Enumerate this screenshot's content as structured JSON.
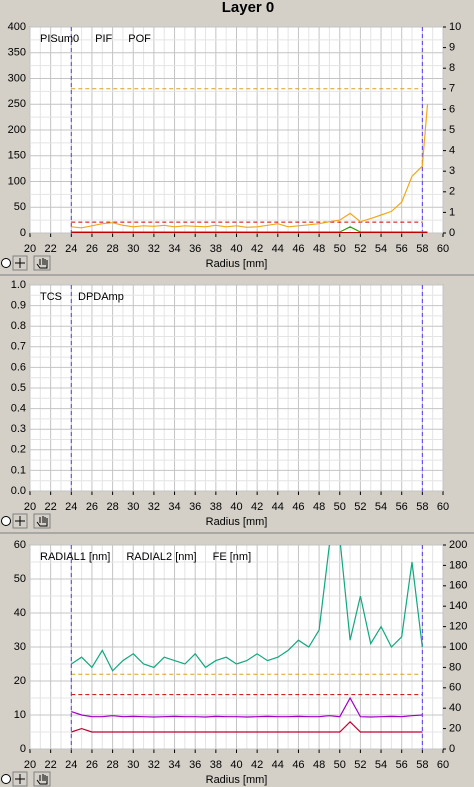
{
  "title": "Layer 0",
  "chart_data": [
    {
      "type": "line",
      "xlabel": "Radius [mm]",
      "xlim": [
        20,
        60
      ],
      "xticks": [
        20,
        22,
        24,
        26,
        28,
        30,
        32,
        34,
        36,
        38,
        40,
        42,
        44,
        46,
        48,
        50,
        52,
        54,
        56,
        58,
        60
      ],
      "ylim": [
        0,
        400
      ],
      "yticks": [
        0,
        50,
        100,
        150,
        200,
        250,
        300,
        350,
        400
      ],
      "y2lim": [
        0,
        10
      ],
      "y2ticks": [
        0,
        1,
        2,
        3,
        4,
        5,
        6,
        7,
        8,
        9,
        10
      ],
      "grid": true,
      "vlines": {
        "values": [
          24,
          58
        ],
        "color": "#5a3cff"
      },
      "hlines": [
        {
          "value": 280,
          "color": "#d8a020"
        },
        {
          "value": 21,
          "color": "#d00000"
        }
      ],
      "x": [
        24,
        25,
        26,
        27,
        28,
        29,
        30,
        31,
        32,
        33,
        34,
        35,
        36,
        37,
        38,
        39,
        40,
        41,
        42,
        43,
        44,
        45,
        46,
        47,
        48,
        49,
        50,
        51,
        52,
        53,
        54,
        55,
        56,
        57,
        58,
        58.5
      ],
      "series": [
        {
          "name": "PISum0",
          "color": "#f0a818",
          "values": [
            12,
            10,
            14,
            18,
            20,
            15,
            12,
            14,
            13,
            15,
            12,
            14,
            13,
            12,
            15,
            12,
            14,
            11,
            12,
            15,
            18,
            12,
            14,
            16,
            18,
            22,
            25,
            38,
            22,
            28,
            35,
            42,
            60,
            110,
            130,
            250
          ]
        },
        {
          "name": "PIF",
          "color": "#30a000",
          "axis": "y2",
          "values": [
            0.05,
            0.05,
            0.05,
            0.05,
            0.05,
            0.05,
            0.05,
            0.05,
            0.05,
            0.05,
            0.05,
            0.05,
            0.05,
            0.05,
            0.05,
            0.05,
            0.05,
            0.05,
            0.05,
            0.05,
            0.05,
            0.05,
            0.05,
            0.05,
            0.05,
            0.05,
            0.05,
            0.3,
            0.05,
            0.05,
            0.05,
            0.05,
            0.05,
            0.05,
            0.05,
            0.05
          ]
        },
        {
          "name": "POF",
          "color": "#c00000",
          "axis": "y2",
          "values": [
            0.02,
            0.02,
            0.02,
            0.02,
            0.02,
            0.02,
            0.02,
            0.02,
            0.02,
            0.02,
            0.02,
            0.02,
            0.02,
            0.02,
            0.02,
            0.02,
            0.02,
            0.02,
            0.02,
            0.02,
            0.02,
            0.02,
            0.02,
            0.02,
            0.02,
            0.02,
            0.02,
            0.02,
            0.02,
            0.02,
            0.02,
            0.02,
            0.02,
            0.02,
            0.02,
            0.02
          ]
        }
      ]
    },
    {
      "type": "line",
      "xlabel": "Radius [mm]",
      "xlim": [
        20,
        60
      ],
      "xticks": [
        20,
        22,
        24,
        26,
        28,
        30,
        32,
        34,
        36,
        38,
        40,
        42,
        44,
        46,
        48,
        50,
        52,
        54,
        56,
        58,
        60
      ],
      "ylim": [
        0,
        1
      ],
      "yticks": [
        {
          "value": 0,
          "label": "0.0"
        },
        0.1,
        0.2,
        0.3,
        0.4,
        0.5,
        0.6,
        0.7,
        0.8,
        0.9,
        {
          "value": 1,
          "label": "1.0"
        }
      ],
      "grid": true,
      "vlines": {
        "values": [
          24,
          58
        ],
        "color": "#5a3cff"
      },
      "x": [],
      "series": [
        {
          "name": "TCS",
          "color": "#308000",
          "values": []
        },
        {
          "name": "DPDAmp",
          "color": "#a00030",
          "values": []
        }
      ]
    },
    {
      "type": "line",
      "xlabel": "Radius [mm]",
      "xlim": [
        20,
        60
      ],
      "xticks": [
        20,
        22,
        24,
        26,
        28,
        30,
        32,
        34,
        36,
        38,
        40,
        42,
        44,
        46,
        48,
        50,
        52,
        54,
        56,
        58,
        60
      ],
      "ylim": [
        0,
        60
      ],
      "yticks": [
        0,
        10,
        20,
        30,
        40,
        50,
        60
      ],
      "y2lim": [
        0,
        200
      ],
      "y2ticks": [
        0,
        20,
        40,
        60,
        80,
        100,
        120,
        140,
        160,
        180,
        200
      ],
      "grid": true,
      "vlines": {
        "values": [
          24,
          58
        ],
        "color": "#5a3cff"
      },
      "hlines": [
        {
          "value": 22,
          "color": "#d8a020"
        },
        {
          "value": 16,
          "color": "#d00000"
        }
      ],
      "x": [
        24,
        25,
        26,
        27,
        28,
        29,
        30,
        31,
        32,
        33,
        34,
        35,
        36,
        37,
        38,
        39,
        40,
        41,
        42,
        43,
        44,
        45,
        46,
        47,
        48,
        49,
        50,
        51,
        52,
        53,
        54,
        55,
        56,
        57,
        58
      ],
      "series": [
        {
          "name": "RADIAL1 [nm]",
          "color": "#a000c8",
          "values": [
            11,
            10,
            9.5,
            9.5,
            9.8,
            9.5,
            9.6,
            9.5,
            9.4,
            9.5,
            9.6,
            9.5,
            9.5,
            9.4,
            9.6,
            9.5,
            9.5,
            9.4,
            9.5,
            9.6,
            9.5,
            9.5,
            9.6,
            9.5,
            9.5,
            9.8,
            9.5,
            15,
            9.5,
            9.4,
            9.5,
            9.6,
            9.5,
            9.8,
            10
          ]
        },
        {
          "name": "RADIAL2 [nm]",
          "color": "#c00030",
          "values": [
            5,
            6,
            5,
            5,
            5,
            5,
            5,
            5,
            5,
            5,
            5,
            5,
            5,
            5,
            5,
            5,
            5,
            5,
            5,
            5,
            5,
            5,
            5,
            5,
            5,
            5,
            5,
            8,
            5,
            5,
            5,
            5,
            5,
            5,
            5
          ]
        },
        {
          "name": "FE [nm]",
          "color": "#10a880",
          "values": [
            25,
            27,
            24,
            29,
            23,
            26,
            28,
            25,
            24,
            27,
            26,
            25,
            28,
            24,
            26,
            27,
            25,
            26,
            28,
            26,
            27,
            29,
            32,
            30,
            35,
            60,
            62,
            32,
            45,
            31,
            36,
            30,
            33,
            55,
            30
          ]
        }
      ]
    }
  ]
}
